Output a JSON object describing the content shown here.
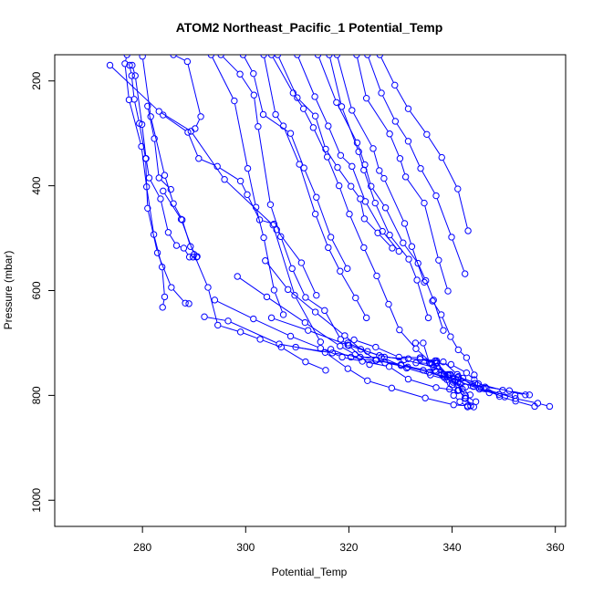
{
  "chart_data": {
    "type": "line",
    "title": "ATOM2 Northeast_Pacific_1 Potential_Temp",
    "xlabel": "Potential_Temp",
    "ylabel": "Pressure (mbar)",
    "xlim": [
      263,
      362
    ],
    "ylim": [
      1050,
      150
    ],
    "y_reversed": true,
    "xticks": [
      280,
      300,
      320,
      340,
      360
    ],
    "yticks": [
      200,
      400,
      600,
      800,
      1000
    ],
    "grid": false,
    "marker": "open-circle",
    "color": "#0000ff",
    "series": [
      {
        "x": [
          277.0,
          276.6,
          277.4,
          279.8,
          280.8,
          282.2,
          283.8,
          284.3,
          283.9
        ],
        "y": [
          150,
          167,
          236,
          325,
          402,
          493,
          555,
          612,
          632
        ]
      },
      {
        "x": [
          277.5,
          277.9,
          278.4,
          279.4,
          280.6,
          281.0,
          282.9,
          285.6,
          288.3,
          289.0
        ],
        "y": [
          170,
          190,
          235,
          281,
          348,
          443,
          528,
          594,
          624,
          625
        ]
      },
      {
        "x": [
          278.0,
          278.6,
          279.9,
          280.7,
          281.3,
          283.5,
          285.0,
          286.6,
          288.0,
          289.1,
          289.8,
          290.5
        ],
        "y": [
          170,
          190,
          283,
          348,
          385,
          425,
          489,
          514,
          519,
          536,
          536,
          536
        ]
      },
      {
        "x": [
          280.0,
          281.6,
          284.3,
          286.0,
          287.7,
          289.3,
          290.6
        ],
        "y": [
          153,
          268,
          380,
          434,
          465,
          516,
          535
        ]
      },
      {
        "x": [
          281.0,
          282.3,
          283.2,
          285.5
        ],
        "y": [
          248,
          310,
          385,
          407
        ]
      },
      {
        "x": [
          286.0,
          288.7,
          291.3,
          290.2
        ],
        "y": [
          150,
          163,
          268,
          291
        ]
      },
      {
        "x": [
          284.0,
          288.8,
          290.9,
          294.5,
          299.0,
          300.3,
          302.7,
          305.5,
          306.0,
          310.8,
          313.7
        ],
        "y": [
          265,
          298,
          348,
          363,
          391,
          417,
          465,
          473,
          484,
          547,
          609
        ]
      },
      {
        "x": [
          293.3,
          297.8,
          300.4,
          302.0,
          303.5,
          305.5,
          307.3
        ],
        "y": [
          150,
          238,
          367,
          441,
          499,
          599,
          646
        ]
      },
      {
        "x": [
          295.2,
          298.9,
          301.6,
          302.4,
          304.8,
          306.8,
          309.0,
          311.6,
          315.3,
          318.4,
          320.0,
          324.0
        ],
        "y": [
          150,
          187,
          227,
          287,
          436,
          497,
          558,
          613,
          638,
          693,
          705,
          741
        ]
      },
      {
        "x": [
          299.5,
          301.5,
          303.4,
          308.7,
          311.3,
          313.7,
          316.5,
          319.7
        ],
        "y": [
          150,
          186,
          264,
          300,
          366,
          422,
          498,
          558
        ]
      },
      {
        "x": [
          303.5,
          305.8,
          307.3,
          310.4,
          313.5,
          316.0,
          318.3,
          321.3,
          323.4
        ],
        "y": [
          150,
          264,
          286,
          359,
          454,
          518,
          563,
          614,
          652
        ]
      },
      {
        "x": [
          305.0,
          309.2,
          311.2,
          313.1,
          315.8,
          318.1,
          320.1,
          322.9,
          325.4,
          327.7,
          329.8,
          333.0,
          336.0
        ],
        "y": [
          150,
          223,
          253,
          289,
          345,
          400,
          454,
          518,
          572,
          626,
          675,
          711,
          738
        ]
      },
      {
        "x": [
          306.2,
          310.0,
          313.5,
          315.5,
          317.8,
          320.4,
          322.2,
          323.0,
          325.6,
          328.4
        ],
        "y": [
          150,
          232,
          267,
          330,
          365,
          401,
          425,
          463,
          490,
          519
        ]
      },
      {
        "x": [
          310.0,
          313.4,
          316.0,
          318.4,
          320.6,
          323.2,
          326.5,
          329.7
        ],
        "y": [
          150,
          230,
          286,
          342,
          363,
          430,
          487,
          525
        ]
      },
      {
        "x": [
          314.0,
          317.6,
          321.6,
          323.1,
          324.3,
          327.1,
          330.5,
          333.4,
          334.9,
          336.4,
          338.3
        ],
        "y": [
          150,
          241,
          318,
          360,
          401,
          442,
          509,
          548,
          581,
          618,
          676
        ]
      },
      {
        "x": [
          316.2,
          318.6,
          321.9,
          322.9,
          325.1,
          327.9,
          331.6,
          333.2,
          335.4
        ],
        "y": [
          150,
          249,
          335,
          370,
          433,
          494,
          540,
          580,
          652
        ]
      },
      {
        "x": [
          317.7,
          320.6,
          324.7,
          325.9,
          326.8,
          330.8,
          332.2,
          334.6
        ],
        "y": [
          150,
          256,
          329,
          371,
          386,
          472,
          516,
          584
        ]
      },
      {
        "x": [
          321.5,
          323.4,
          327.9,
          329.9,
          331.0,
          334.6,
          337.4,
          339.2
        ],
        "y": [
          150,
          233,
          301,
          348,
          383,
          433,
          542,
          601
        ]
      },
      {
        "x": [
          323.6,
          326.3,
          329.0,
          331.5,
          333.9,
          336.9,
          339.9,
          342.5
        ],
        "y": [
          150,
          223,
          277,
          315,
          367,
          419,
          498,
          568
        ]
      },
      {
        "x": [
          326.0,
          328.9,
          331.5,
          335.1,
          338.0,
          341.1,
          343.1
        ],
        "y": [
          150,
          208,
          253,
          302,
          346,
          406,
          486
        ]
      },
      {
        "x": [
          273.7,
          283.2,
          289.4,
          295.9,
          305.3,
          309.5,
          314.5
        ],
        "y": [
          170,
          258,
          296,
          388,
          475,
          609,
          698
        ]
      },
      {
        "x": [
          284.0,
          287.5,
          290.0,
          292.7,
          294.6,
          299.0,
          302.8,
          306.9,
          311.6,
          315.5
        ],
        "y": [
          410,
          464,
          531,
          594,
          666,
          679,
          693,
          708,
          736,
          752
        ]
      },
      {
        "x": [
          292.0,
          296.6,
          306.5,
          315.4,
          319.8,
          323.6,
          328.3,
          334.8,
          340.3,
          343.0
        ],
        "y": [
          650,
          658,
          702,
          718,
          749,
          772,
          786,
          805,
          818,
          820
        ]
      },
      {
        "x": [
          294.0,
          301.5,
          308.7,
          314.5,
          318.7,
          322.6,
          327.8,
          331.5,
          336.9,
          341.1
        ],
        "y": [
          618,
          654,
          687,
          710,
          727,
          735,
          745,
          769,
          785,
          791
        ]
      },
      {
        "x": [
          298.4,
          304.1,
          311.5,
          318.3,
          321.2,
          325.2,
          330.1,
          334.4,
          338.5,
          342.6,
          347.2
        ],
        "y": [
          573,
          612,
          661,
          706,
          722,
          733,
          741,
          752,
          766,
          784,
          795
        ]
      },
      {
        "x": [
          303.8,
          308.2,
          313.5,
          319.2,
          322.3,
          325.3,
          330.1,
          335.6,
          340.8,
          345.3,
          350.2
        ],
        "y": [
          543,
          598,
          641,
          686,
          712,
          733,
          743,
          756,
          771,
          788,
          803
        ]
      },
      {
        "x": [
          305.0,
          312.1,
          319.8,
          325.9,
          330.7,
          336.4,
          339.7,
          345.1,
          349.8,
          354.2
        ],
        "y": [
          652,
          676,
          704,
          724,
          732,
          746,
          760,
          778,
          790,
          799
        ]
      },
      {
        "x": [
          309.7,
          316.8,
          322.2,
          326.3,
          331.2,
          335.8,
          341.5,
          346.4,
          351.1,
          355.0
        ],
        "y": [
          708,
          719,
          727,
          727,
          748,
          761,
          777,
          784,
          791,
          799
        ]
      },
      {
        "x": [
          316.5,
          320.4,
          327.0,
          331.4,
          336.9,
          341.1,
          346.1,
          352.3,
          356.6,
          358.9
        ],
        "y": [
          712,
          727,
          738,
          746,
          754,
          766,
          787,
          806,
          815,
          821
        ]
      },
      {
        "x": [
          319.8,
          323.6,
          326.9,
          331.5,
          336.7,
          338.3,
          341.0,
          344.1,
          349.1,
          352.2
        ],
        "y": [
          700,
          716,
          727,
          730,
          734,
          736,
          760,
          783,
          798,
          800
        ]
      },
      {
        "x": [
          321.0,
          325.2,
          329.7,
          333.8,
          337.0,
          339.2,
          341.2,
          342.1,
          344.4,
          345.6
        ],
        "y": [
          694,
          708,
          727,
          728,
          737,
          762,
          764,
          767,
          777,
          785
        ]
      },
      {
        "x": [
          333.0,
          335.8,
          336.1,
          336.7,
          338.5,
          340.5,
          342.0,
          343.5
        ],
        "y": [
          738,
          739,
          741,
          752,
          760,
          773,
          788,
          799
        ]
      },
      {
        "x": [
          332.9,
          334.4,
          335.6,
          337.1,
          339.2,
          341.1,
          342.6,
          344.6
        ],
        "y": [
          700,
          700,
          738,
          745,
          760,
          775,
          801,
          812
        ]
      },
      {
        "x": [
          333.8,
          337.0,
          339.8,
          342.8,
          344.3,
          346.6,
          349.2,
          352.3,
          356.0
        ],
        "y": [
          731,
          739,
          741,
          757,
          770,
          786,
          802,
          811,
          821
        ]
      },
      {
        "x": [
          336.2,
          337.9,
          339.7,
          341.2,
          342.8,
          344.3
        ],
        "y": [
          620,
          646,
          688,
          713,
          728,
          761
        ]
      },
      {
        "x": [
          337.0,
          338.4,
          339.5,
          340.3,
          341.5,
          343.0
        ],
        "y": [
          734,
          760,
          788,
          800,
          812,
          822
        ]
      },
      {
        "x": [
          338.0,
          339.0,
          340.0,
          341.2,
          342.5,
          344.2
        ],
        "y": [
          760,
          770,
          780,
          790,
          805,
          822
        ]
      },
      {
        "x": [
          339.5,
          340.2,
          341.3,
          342.6,
          343.6
        ],
        "y": [
          760,
          775,
          790,
          806,
          820
        ]
      }
    ]
  }
}
